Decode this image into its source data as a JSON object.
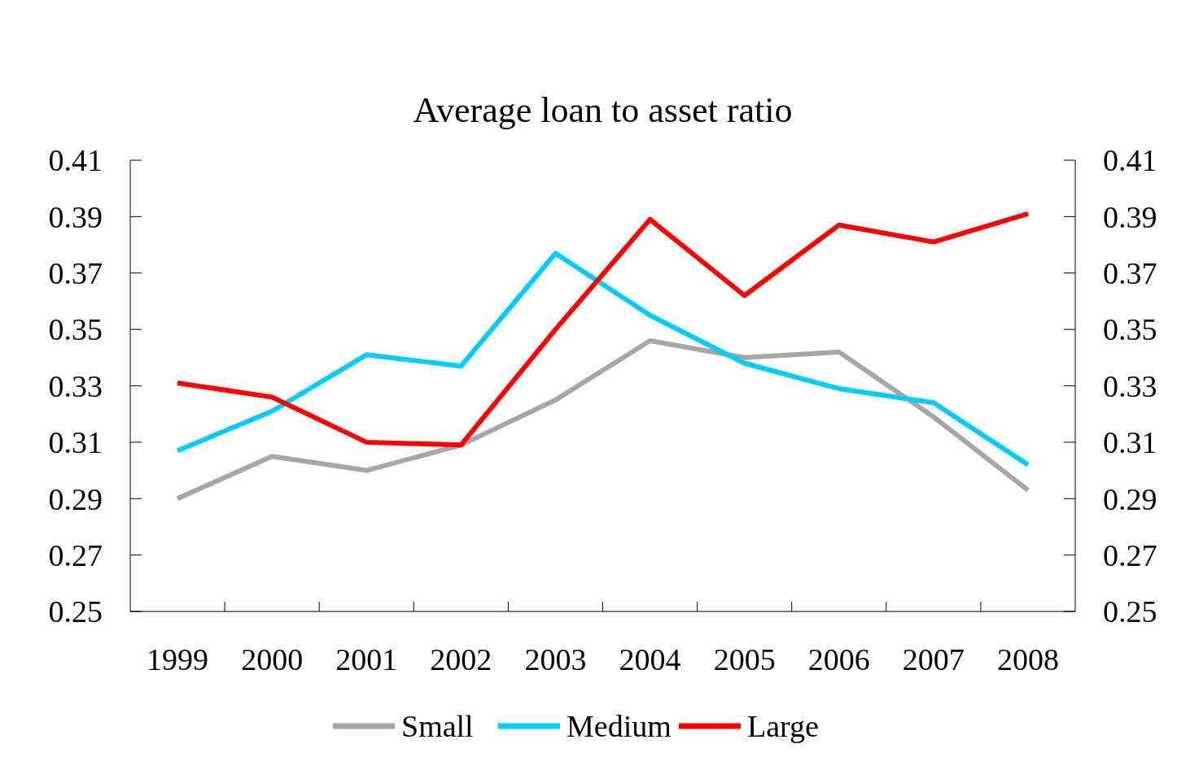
{
  "chart_data": {
    "type": "line",
    "title": "Average loan to asset ratio",
    "categories": [
      "1999",
      "2000",
      "2001",
      "2002",
      "2003",
      "2004",
      "2005",
      "2006",
      "2007",
      "2008"
    ],
    "series": [
      {
        "name": "Small",
        "color": "#a6a6a6",
        "values": [
          0.29,
          0.305,
          0.3,
          0.309,
          0.325,
          0.346,
          0.34,
          0.342,
          0.319,
          0.293
        ]
      },
      {
        "name": "Medium",
        "color": "#00ccff",
        "values": [
          0.307,
          0.321,
          0.341,
          0.337,
          0.377,
          0.355,
          0.338,
          0.329,
          0.324,
          0.302
        ]
      },
      {
        "name": "Large",
        "color": "#ff0000",
        "values": [
          0.331,
          0.326,
          0.31,
          0.309,
          0.35,
          0.389,
          0.362,
          0.387,
          0.381,
          0.391
        ]
      }
    ],
    "ylim": [
      0.25,
      0.41
    ],
    "yticks": [
      0.25,
      0.27,
      0.29,
      0.31,
      0.33,
      0.35,
      0.37,
      0.39,
      0.41
    ],
    "y2lim": [
      0.25,
      0.41
    ],
    "y2ticks": [
      0.25,
      0.27,
      0.29,
      0.31,
      0.33,
      0.35,
      0.37,
      0.39,
      0.41
    ],
    "grid": false,
    "legend": "bottom",
    "marker": "none",
    "line_style": "solid"
  }
}
